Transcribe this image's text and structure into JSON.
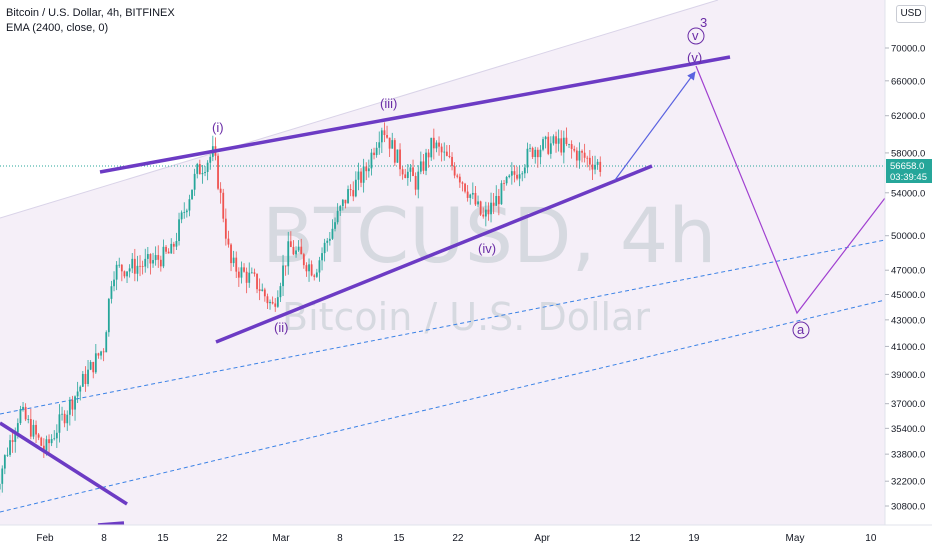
{
  "legend": {
    "symbol_line": "Bitcoin / U.S. Dollar, 4h, BITFINEX",
    "indicator_line": "EMA (2400, close, 0)"
  },
  "currency_button": "USD",
  "watermark": {
    "ticker": "BTCUSD, 4h",
    "name": "Bitcoin / U.S. Dollar"
  },
  "price_badge": {
    "price": "56658.0",
    "countdown": "03:39:45",
    "color": "#26a69a"
  },
  "colors": {
    "accent_purple": "#6a2ca6",
    "trend_purple": "#6c3bc4",
    "projection_blue": "#5a62e0",
    "projection_purple": "#a040d0",
    "dashed_blue": "#3b82e6",
    "channel_fill": "#f4eef8"
  },
  "chart_data": {
    "type": "candlestick",
    "symbol": "BTCUSD",
    "timeframe": "4h",
    "exchange": "BITFINEX",
    "y_scale": "log",
    "ylim": [
      29500,
      76500
    ],
    "y_ticks": [
      "70000.0",
      "66000.0",
      "62000.0",
      "58000.0",
      "54000.0",
      "50000.0",
      "47000.0",
      "45000.0",
      "43000.0",
      "41000.0",
      "39000.0",
      "37000.0",
      "35400.0",
      "33800.0",
      "32200.0",
      "30800.0"
    ],
    "x_ticks": [
      {
        "label": "Feb",
        "date": "2021-02-01"
      },
      {
        "label": "8",
        "date": "2021-02-08"
      },
      {
        "label": "15",
        "date": "2021-02-15"
      },
      {
        "label": "22",
        "date": "2021-02-22"
      },
      {
        "label": "Mar",
        "date": "2021-03-01"
      },
      {
        "label": "8",
        "date": "2021-03-08"
      },
      {
        "label": "15",
        "date": "2021-03-15"
      },
      {
        "label": "22",
        "date": "2021-03-22"
      },
      {
        "label": "Apr",
        "date": "2021-04-01"
      },
      {
        "label": "12",
        "date": "2021-04-12"
      },
      {
        "label": "19",
        "date": "2021-04-19"
      },
      {
        "label": "May",
        "date": "2021-05-01"
      },
      {
        "label": "10",
        "date": "2021-05-10"
      }
    ],
    "price_path": [
      {
        "date": "2021-01-26",
        "price": 31500
      },
      {
        "date": "2021-01-29",
        "price": 36500
      },
      {
        "date": "2021-02-01",
        "price": 34000
      },
      {
        "date": "2021-02-05",
        "price": 38000
      },
      {
        "date": "2021-02-08",
        "price": 41000
      },
      {
        "date": "2021-02-09",
        "price": 47000
      },
      {
        "date": "2021-02-13",
        "price": 47500
      },
      {
        "date": "2021-02-16",
        "price": 48500
      },
      {
        "date": "2021-02-19",
        "price": 56000
      },
      {
        "date": "2021-02-21",
        "price": 58000
      },
      {
        "date": "2021-02-23",
        "price": 47500
      },
      {
        "date": "2021-02-26",
        "price": 46000
      },
      {
        "date": "2021-02-28",
        "price": 44000
      },
      {
        "date": "2021-03-02",
        "price": 49000
      },
      {
        "date": "2021-03-05",
        "price": 47000
      },
      {
        "date": "2021-03-09",
        "price": 54000
      },
      {
        "date": "2021-03-11",
        "price": 56000
      },
      {
        "date": "2021-03-13",
        "price": 61000
      },
      {
        "date": "2021-03-15",
        "price": 57000
      },
      {
        "date": "2021-03-17",
        "price": 55000
      },
      {
        "date": "2021-03-19",
        "price": 59000
      },
      {
        "date": "2021-03-22",
        "price": 56000
      },
      {
        "date": "2021-03-25",
        "price": 51500
      },
      {
        "date": "2021-03-28",
        "price": 55000
      },
      {
        "date": "2021-03-31",
        "price": 58500
      },
      {
        "date": "2021-04-03",
        "price": 59000
      },
      {
        "date": "2021-04-06",
        "price": 57500
      },
      {
        "date": "2021-04-08",
        "price": 56658
      }
    ],
    "ema": {
      "name": "EMA (2400, close, 0)"
    },
    "projection": [
      {
        "date": "2021-04-10",
        "price": 55500
      },
      {
        "date": "2021-04-19",
        "price": 67000
      },
      {
        "date": "2021-05-02",
        "price": 43500
      },
      {
        "date": "2021-05-14",
        "price": 53000
      }
    ],
    "wave_labels": [
      {
        "text": "(i)",
        "date": "2021-02-20",
        "price": 58000
      },
      {
        "text": "(ii)",
        "date": "2021-03-01",
        "price": 43200
      },
      {
        "text": "(iii)",
        "date": "2021-03-13",
        "price": 61500
      },
      {
        "text": "(iv)",
        "date": "2021-03-25",
        "price": 50800
      },
      {
        "text": "(v)",
        "date": "2021-04-19",
        "price": 67000
      },
      {
        "text": "v",
        "date": "2021-04-19",
        "price": 67000
      },
      {
        "text": "3",
        "date": "2021-04-19",
        "price": 67000
      },
      {
        "text": "a",
        "date": "2021-05-02",
        "price": 43500
      }
    ],
    "trendlines": [
      {
        "name": "upper-channel",
        "from": {
          "date": "2021-02-01",
          "price": 56000
        },
        "to": {
          "date": "2021-04-25",
          "price": 67000
        }
      },
      {
        "name": "lower-channel",
        "from": {
          "date": "2021-02-24",
          "price": 41500
        },
        "to": {
          "date": "2021-04-15",
          "price": 56300
        }
      },
      {
        "name": "downtrend-left",
        "from": {
          "date": "2021-01-25",
          "price": 36500
        },
        "to": {
          "date": "2021-02-09",
          "price": 31100
        }
      }
    ]
  }
}
